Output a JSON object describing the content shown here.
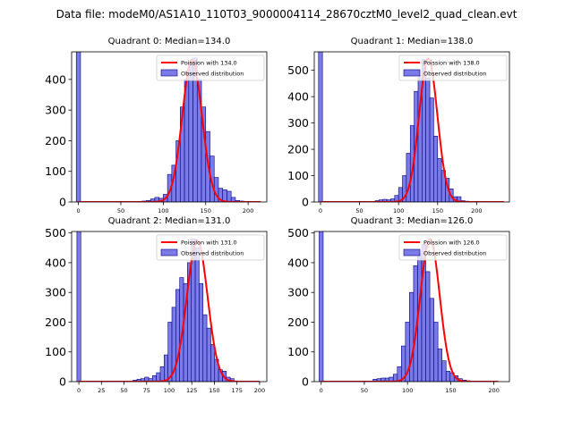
{
  "figure": {
    "suptitle": "Data file: modeM0/AS1A10_110T03_9000004114_28670cztM0_level2_quad_clean.evt",
    "bar_color": "#7b7be8",
    "bar_edge_color": "#000080",
    "line_color": "#ff0000"
  },
  "chart_data": [
    {
      "type": "bar",
      "title": "Quadrant 0: Median=134.0",
      "xlim": [
        -8,
        222
      ],
      "ylim": [
        0,
        490
      ],
      "xticks": [
        0,
        50,
        100,
        150,
        200
      ],
      "yticks": [
        0,
        100,
        200,
        300,
        400
      ],
      "bin_width": 5,
      "legend": {
        "line_label": "Poission with 134.0",
        "bar_label": "Observed distribution",
        "position": "top-right"
      },
      "zero_bin": {
        "x": 0,
        "value": 700
      },
      "bins_start": 75,
      "values": [
        3,
        5,
        10,
        15,
        12,
        25,
        90,
        120,
        200,
        310,
        400,
        455,
        470,
        400,
        310,
        230,
        150,
        80,
        45,
        40,
        35,
        15,
        5,
        3
      ],
      "poisson": {
        "mean": 134.0,
        "peak": 465,
        "sigma": 11.6,
        "x_range": [
          0,
          215
        ]
      }
    },
    {
      "type": "bar",
      "title": "Quadrant 1: Median=138.0",
      "xlim": [
        -8,
        242
      ],
      "ylim": [
        0,
        570
      ],
      "xticks": [
        0,
        50,
        100,
        150,
        200
      ],
      "yticks": [
        0,
        100,
        200,
        300,
        400,
        500
      ],
      "bin_width": 5,
      "legend": {
        "line_label": "Poission with 138.0",
        "bar_label": "Observed distribution",
        "position": "top-right"
      },
      "zero_bin": {
        "x": 0,
        "value": 800
      },
      "bins_start": 70,
      "values": [
        5,
        8,
        10,
        8,
        12,
        25,
        55,
        100,
        185,
        290,
        420,
        480,
        540,
        470,
        395,
        250,
        165,
        120,
        90,
        50,
        20,
        20,
        5,
        3
      ],
      "poisson": {
        "mean": 138.0,
        "peak": 545,
        "sigma": 11.7,
        "x_range": [
          0,
          235
        ]
      }
    },
    {
      "type": "bar",
      "title": "Quadrant 2: Median=131.0",
      "xlim": [
        -8,
        208
      ],
      "ylim": [
        0,
        505
      ],
      "xticks": [
        0,
        25,
        50,
        75,
        100,
        125,
        150,
        175,
        200
      ],
      "yticks": [
        0,
        100,
        200,
        300,
        400,
        500
      ],
      "bin_width": 4.3,
      "legend": {
        "line_label": "Poission with 131.0",
        "bar_label": "Observed distribution",
        "position": "top-right"
      },
      "zero_bin": {
        "x": 0,
        "value": 700
      },
      "bins_start": 60,
      "values": [
        5,
        8,
        10,
        15,
        10,
        20,
        30,
        50,
        90,
        200,
        250,
        310,
        350,
        330,
        400,
        480,
        450,
        330,
        225,
        180,
        125,
        75,
        40,
        35,
        15,
        10
      ],
      "poisson": {
        "mean": 131.0,
        "peak": 475,
        "sigma": 11.4,
        "x_range": [
          0,
          200
        ]
      }
    },
    {
      "type": "bar",
      "title": "Quadrant 3: Median=126.0",
      "xlim": [
        -8,
        218
      ],
      "ylim": [
        0,
        505
      ],
      "xticks": [
        0,
        50,
        100,
        150,
        200
      ],
      "yticks": [
        0,
        100,
        200,
        300,
        400,
        500
      ],
      "bin_width": 4.7,
      "legend": {
        "line_label": "Poission with 126.0",
        "bar_label": "Observed distribution",
        "position": "top-right"
      },
      "zero_bin": {
        "x": 0,
        "value": 700
      },
      "bins_start": 60,
      "values": [
        8,
        10,
        12,
        12,
        15,
        25,
        50,
        120,
        200,
        300,
        390,
        430,
        460,
        370,
        280,
        200,
        110,
        70,
        35,
        30,
        20,
        10,
        5,
        3
      ],
      "poisson": {
        "mean": 126.0,
        "peak": 480,
        "sigma": 11.2,
        "x_range": [
          0,
          205
        ]
      }
    }
  ]
}
